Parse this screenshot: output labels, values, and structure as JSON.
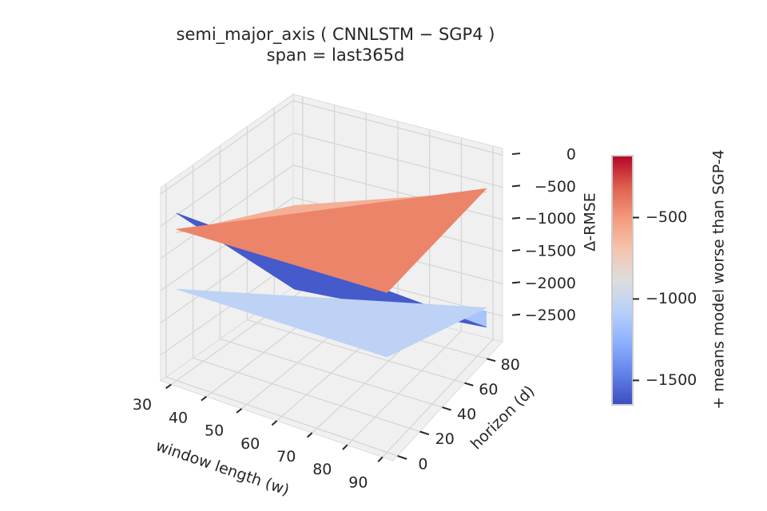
{
  "chart_data": {
    "type": "surface3d",
    "title": "semi_major_axis  ( CNNLSTM − SGP4 )",
    "subtitle": "span = last365d",
    "xlabel": "window length (w)",
    "ylabel": "horizon (d)",
    "zlabel": "Δ-RMSE",
    "x_ticks": [
      30,
      40,
      50,
      60,
      70,
      80,
      90
    ],
    "y_ticks": [
      0,
      20,
      40,
      60,
      80
    ],
    "z_ticks": [
      0,
      -500,
      -1000,
      -1500,
      -2000,
      -2500
    ],
    "xlim": [
      27,
      93
    ],
    "ylim": [
      -4,
      94
    ],
    "zlim": [
      -2900,
      100
    ],
    "grid": true,
    "colorbar": {
      "label": "+ means model worse than SGP-4",
      "ticks": [
        -500,
        -1000,
        -1500
      ],
      "range": [
        -1650,
        -120
      ],
      "colormap": "coolwarm"
    },
    "surface": [
      {
        "points": [
          [
            30,
            0,
            -550
          ],
          [
            90,
            88,
            -450
          ],
          [
            90,
            0,
            -420
          ]
        ],
        "value": -430
      },
      {
        "points": [
          [
            30,
            0,
            -600
          ],
          [
            30,
            88,
            -1500
          ],
          [
            90,
            88,
            -500
          ]
        ],
        "value": -600
      },
      {
        "points": [
          [
            30,
            0,
            -1480
          ],
          [
            90,
            0,
            -1420
          ],
          [
            90,
            88,
            -2300
          ]
        ],
        "value": -1050
      },
      {
        "points": [
          [
            30,
            0,
            -300
          ],
          [
            90,
            88,
            -2600
          ],
          [
            30,
            88,
            -2800
          ]
        ],
        "value": -1600
      },
      {
        "points": [
          [
            30,
            88,
            -2800
          ],
          [
            90,
            88,
            -2600
          ],
          [
            90,
            88,
            -2350
          ]
        ],
        "value": -1150
      }
    ]
  }
}
